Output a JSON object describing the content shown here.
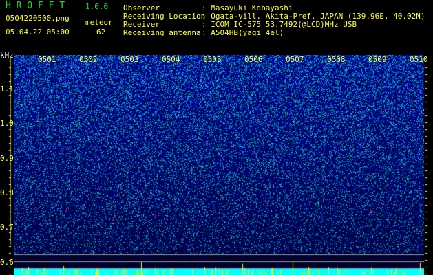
{
  "app": {
    "title": "H R O F F T",
    "version": "1.0.0"
  },
  "file": {
    "name": "0504220500.png",
    "datetime": "05.04.22 05:00",
    "meteor_label": "meteor",
    "meteor_count": "62"
  },
  "info": [
    {
      "label": "Observer",
      "value": ": Masayuki Kobayashi"
    },
    {
      "label": "Receiving Location",
      "value": ": Ogata-vill. Akita-Pref. JAPAN (139.96E, 40.02N)"
    },
    {
      "label": "Receiver",
      "value": ": ICOM IC-575 53.7492(@LCD)MHz USB"
    },
    {
      "label": "Receiving antenna",
      "value": ": A504HB(yagi 4el)"
    }
  ],
  "spectrogram": {
    "y_unit": "kHz",
    "y_ticks": [
      "1.1",
      "1.0",
      "0.9",
      "0.8",
      "0.7",
      "0.6"
    ],
    "time_labels": [
      "0501",
      "0502",
      "0503",
      "0504",
      "0505",
      "0506",
      "0507",
      "0508",
      "0509",
      "0510"
    ],
    "colors": {
      "background": "#000000",
      "noise": "#1a2acc",
      "signal": "#00ff66",
      "meteor": "#ff0044",
      "count_bar": "#00ffff",
      "spike": "#ffff00"
    }
  }
}
